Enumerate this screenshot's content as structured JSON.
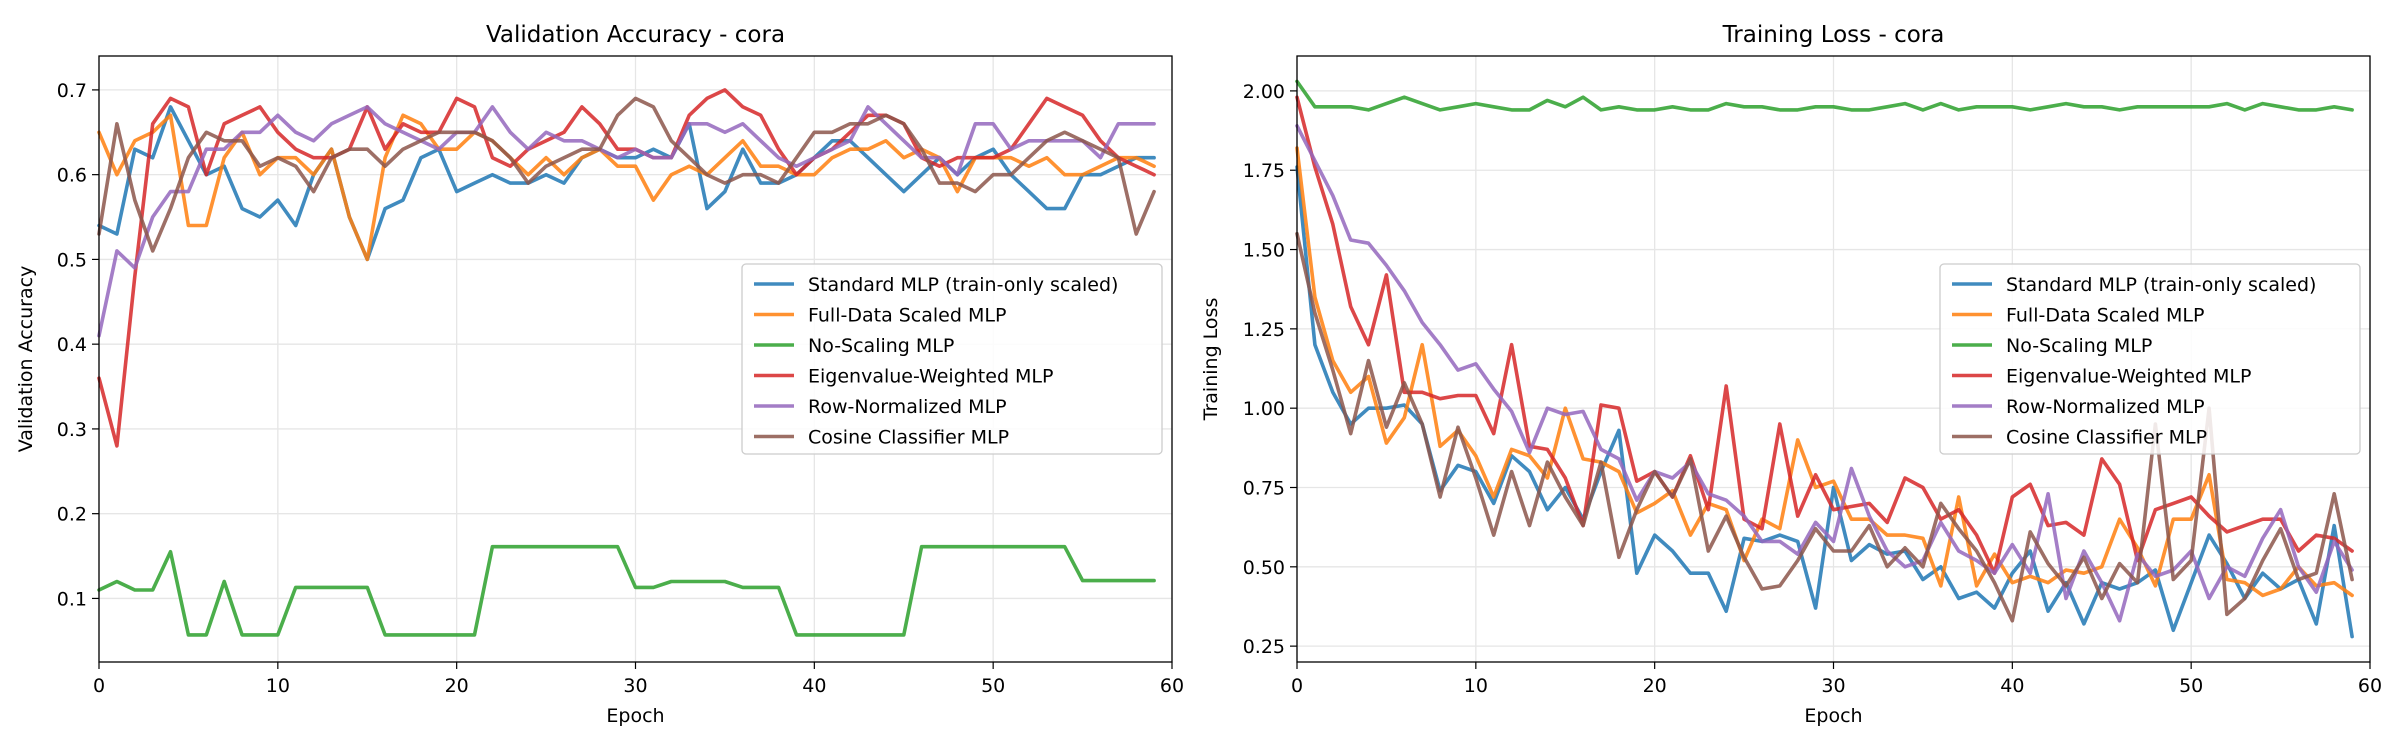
{
  "chart_data": [
    {
      "type": "line",
      "title": "Validation Accuracy - cora",
      "xlabel": "Epoch",
      "ylabel": "Validation Accuracy",
      "xlim": [
        0,
        60
      ],
      "ylim": [
        0.025,
        0.74
      ],
      "xticks": [
        0,
        10,
        20,
        30,
        40,
        50,
        60
      ],
      "yticks": [
        0.1,
        0.2,
        0.3,
        0.4,
        0.5,
        0.6,
        0.7
      ],
      "grid": true,
      "legend_position": "center-right",
      "x": [
        0,
        1,
        2,
        3,
        4,
        5,
        6,
        7,
        8,
        9,
        10,
        11,
        12,
        13,
        14,
        15,
        16,
        17,
        18,
        19,
        20,
        21,
        22,
        23,
        24,
        25,
        26,
        27,
        28,
        29,
        30,
        31,
        32,
        33,
        34,
        35,
        36,
        37,
        38,
        39,
        40,
        41,
        42,
        43,
        44,
        45,
        46,
        47,
        48,
        49,
        50,
        51,
        52,
        53,
        54,
        55,
        56,
        57,
        58,
        59
      ],
      "series": [
        {
          "name": "Standard MLP (train-only scaled)",
          "color": "#1f77b4",
          "values": [
            0.54,
            0.53,
            0.63,
            0.62,
            0.68,
            0.64,
            0.6,
            0.61,
            0.56,
            0.55,
            0.57,
            0.54,
            0.6,
            0.63,
            0.55,
            0.5,
            0.56,
            0.57,
            0.62,
            0.63,
            0.58,
            0.59,
            0.6,
            0.59,
            0.59,
            0.6,
            0.59,
            0.62,
            0.63,
            0.62,
            0.62,
            0.63,
            0.62,
            0.66,
            0.56,
            0.58,
            0.63,
            0.59,
            0.59,
            0.6,
            0.62,
            0.64,
            0.64,
            0.62,
            0.6,
            0.58,
            0.6,
            0.62,
            0.6,
            0.62,
            0.63,
            0.6,
            0.58,
            0.56,
            0.56,
            0.6,
            0.6,
            0.61,
            0.62,
            0.62
          ]
        },
        {
          "name": "Full-Data Scaled MLP",
          "color": "#ff7f0e",
          "values": [
            0.65,
            0.6,
            0.64,
            0.65,
            0.67,
            0.54,
            0.54,
            0.62,
            0.65,
            0.6,
            0.62,
            0.62,
            0.6,
            0.63,
            0.55,
            0.5,
            0.62,
            0.67,
            0.66,
            0.63,
            0.63,
            0.65,
            0.64,
            0.62,
            0.6,
            0.62,
            0.6,
            0.62,
            0.63,
            0.61,
            0.61,
            0.57,
            0.6,
            0.61,
            0.6,
            0.62,
            0.64,
            0.61,
            0.61,
            0.6,
            0.6,
            0.62,
            0.63,
            0.63,
            0.64,
            0.62,
            0.63,
            0.62,
            0.58,
            0.62,
            0.62,
            0.62,
            0.61,
            0.62,
            0.6,
            0.6,
            0.61,
            0.62,
            0.62,
            0.61
          ]
        },
        {
          "name": "No-Scaling MLP",
          "color": "#2ca02c",
          "values": [
            0.11,
            0.12,
            0.11,
            0.11,
            0.155,
            0.057,
            0.057,
            0.12,
            0.057,
            0.057,
            0.057,
            0.113,
            0.113,
            0.113,
            0.113,
            0.113,
            0.057,
            0.057,
            0.057,
            0.057,
            0.057,
            0.057,
            0.161,
            0.161,
            0.161,
            0.161,
            0.161,
            0.161,
            0.161,
            0.161,
            0.113,
            0.113,
            0.12,
            0.12,
            0.12,
            0.12,
            0.113,
            0.113,
            0.113,
            0.057,
            0.057,
            0.057,
            0.057,
            0.057,
            0.057,
            0.057,
            0.161,
            0.161,
            0.161,
            0.161,
            0.161,
            0.161,
            0.161,
            0.161,
            0.161,
            0.121,
            0.121,
            0.121,
            0.121,
            0.121
          ]
        },
        {
          "name": "Eigenvalue-Weighted MLP",
          "color": "#d62728",
          "values": [
            0.36,
            0.28,
            0.48,
            0.66,
            0.69,
            0.68,
            0.6,
            0.66,
            0.67,
            0.68,
            0.65,
            0.63,
            0.62,
            0.62,
            0.63,
            0.68,
            0.63,
            0.66,
            0.65,
            0.65,
            0.69,
            0.68,
            0.62,
            0.61,
            0.63,
            0.64,
            0.65,
            0.68,
            0.66,
            0.63,
            0.63,
            0.62,
            0.62,
            0.67,
            0.69,
            0.7,
            0.68,
            0.67,
            0.63,
            0.6,
            0.62,
            0.63,
            0.65,
            0.67,
            0.67,
            0.66,
            0.62,
            0.61,
            0.62,
            0.62,
            0.62,
            0.63,
            0.66,
            0.69,
            0.68,
            0.67,
            0.64,
            0.62,
            0.61,
            0.6
          ]
        },
        {
          "name": "Row-Normalized MLP",
          "color": "#9467bd",
          "values": [
            0.41,
            0.51,
            0.49,
            0.55,
            0.58,
            0.58,
            0.63,
            0.63,
            0.65,
            0.65,
            0.67,
            0.65,
            0.64,
            0.66,
            0.67,
            0.68,
            0.66,
            0.65,
            0.64,
            0.63,
            0.65,
            0.65,
            0.68,
            0.65,
            0.63,
            0.65,
            0.64,
            0.64,
            0.63,
            0.62,
            0.63,
            0.62,
            0.62,
            0.66,
            0.66,
            0.65,
            0.66,
            0.64,
            0.62,
            0.61,
            0.62,
            0.63,
            0.64,
            0.68,
            0.66,
            0.64,
            0.62,
            0.62,
            0.6,
            0.66,
            0.66,
            0.63,
            0.64,
            0.64,
            0.64,
            0.64,
            0.62,
            0.66,
            0.66,
            0.66
          ]
        },
        {
          "name": "Cosine Classifier MLP",
          "color": "#8c564b",
          "values": [
            0.53,
            0.66,
            0.57,
            0.51,
            0.56,
            0.62,
            0.65,
            0.64,
            0.64,
            0.61,
            0.62,
            0.61,
            0.58,
            0.62,
            0.63,
            0.63,
            0.61,
            0.63,
            0.64,
            0.65,
            0.65,
            0.65,
            0.64,
            0.62,
            0.59,
            0.61,
            0.62,
            0.63,
            0.63,
            0.67,
            0.69,
            0.68,
            0.64,
            0.62,
            0.6,
            0.59,
            0.6,
            0.6,
            0.59,
            0.62,
            0.65,
            0.65,
            0.66,
            0.66,
            0.67,
            0.66,
            0.63,
            0.59,
            0.59,
            0.58,
            0.6,
            0.6,
            0.62,
            0.64,
            0.65,
            0.64,
            0.63,
            0.62,
            0.53,
            0.58
          ]
        }
      ]
    },
    {
      "type": "line",
      "title": "Training Loss - cora",
      "xlabel": "Epoch",
      "ylabel": "Training Loss",
      "xlim": [
        0,
        60
      ],
      "ylim": [
        0.2,
        2.11
      ],
      "xticks": [
        0,
        10,
        20,
        30,
        40,
        50,
        60
      ],
      "yticks": [
        0.25,
        0.5,
        0.75,
        1.0,
        1.25,
        1.5,
        1.75,
        2.0
      ],
      "grid": true,
      "legend_position": "center-right",
      "x": [
        0,
        1,
        2,
        3,
        4,
        5,
        6,
        7,
        8,
        9,
        10,
        11,
        12,
        13,
        14,
        15,
        16,
        17,
        18,
        19,
        20,
        21,
        22,
        23,
        24,
        25,
        26,
        27,
        28,
        29,
        30,
        31,
        32,
        33,
        34,
        35,
        36,
        37,
        38,
        39,
        40,
        41,
        42,
        43,
        44,
        45,
        46,
        47,
        48,
        49,
        50,
        51,
        52,
        53,
        54,
        55,
        56,
        57,
        58,
        59
      ],
      "series": [
        {
          "name": "Standard MLP (train-only scaled)",
          "color": "#1f77b4",
          "values": [
            1.76,
            1.2,
            1.05,
            0.95,
            1.0,
            1.0,
            1.01,
            0.95,
            0.74,
            0.82,
            0.8,
            0.7,
            0.85,
            0.8,
            0.68,
            0.75,
            0.65,
            0.8,
            0.93,
            0.48,
            0.6,
            0.55,
            0.48,
            0.48,
            0.36,
            0.59,
            0.58,
            0.6,
            0.58,
            0.37,
            0.75,
            0.52,
            0.57,
            0.54,
            0.55,
            0.46,
            0.5,
            0.4,
            0.42,
            0.37,
            0.48,
            0.55,
            0.36,
            0.45,
            0.32,
            0.45,
            0.43,
            0.45,
            0.49,
            0.3,
            0.45,
            0.6,
            0.51,
            0.4,
            0.48,
            0.43,
            0.46,
            0.32,
            0.63,
            0.28
          ]
        },
        {
          "name": "Full-Data Scaled MLP",
          "color": "#ff7f0e",
          "values": [
            1.82,
            1.35,
            1.15,
            1.05,
            1.1,
            0.89,
            0.97,
            1.2,
            0.88,
            0.93,
            0.85,
            0.72,
            0.87,
            0.85,
            0.78,
            1.0,
            0.84,
            0.83,
            0.8,
            0.67,
            0.7,
            0.74,
            0.6,
            0.7,
            0.68,
            0.52,
            0.65,
            0.62,
            0.9,
            0.75,
            0.77,
            0.65,
            0.65,
            0.6,
            0.6,
            0.59,
            0.44,
            0.72,
            0.44,
            0.54,
            0.45,
            0.47,
            0.45,
            0.49,
            0.48,
            0.5,
            0.65,
            0.56,
            0.44,
            0.65,
            0.65,
            0.79,
            0.46,
            0.45,
            0.41,
            0.43,
            0.5,
            0.44,
            0.45,
            0.41
          ]
        },
        {
          "name": "No-Scaling MLP",
          "color": "#2ca02c",
          "values": [
            2.03,
            1.95,
            1.95,
            1.95,
            1.94,
            1.96,
            1.98,
            1.96,
            1.94,
            1.95,
            1.96,
            1.95,
            1.94,
            1.94,
            1.97,
            1.95,
            1.98,
            1.94,
            1.95,
            1.94,
            1.94,
            1.95,
            1.94,
            1.94,
            1.96,
            1.95,
            1.95,
            1.94,
            1.94,
            1.95,
            1.95,
            1.94,
            1.94,
            1.95,
            1.96,
            1.94,
            1.96,
            1.94,
            1.95,
            1.95,
            1.95,
            1.94,
            1.95,
            1.96,
            1.95,
            1.95,
            1.94,
            1.95,
            1.95,
            1.95,
            1.95,
            1.95,
            1.96,
            1.94,
            1.96,
            1.95,
            1.94,
            1.94,
            1.95,
            1.94
          ]
        },
        {
          "name": "Eigenvalue-Weighted MLP",
          "color": "#d62728",
          "values": [
            1.98,
            1.76,
            1.58,
            1.32,
            1.2,
            1.42,
            1.05,
            1.05,
            1.03,
            1.04,
            1.04,
            0.92,
            1.2,
            0.88,
            0.87,
            0.78,
            0.63,
            1.01,
            1.0,
            0.77,
            0.8,
            0.72,
            0.85,
            0.68,
            1.07,
            0.65,
            0.62,
            0.95,
            0.66,
            0.79,
            0.68,
            0.69,
            0.7,
            0.64,
            0.78,
            0.75,
            0.65,
            0.68,
            0.6,
            0.48,
            0.72,
            0.76,
            0.63,
            0.64,
            0.6,
            0.84,
            0.76,
            0.52,
            0.68,
            0.7,
            0.72,
            0.66,
            0.61,
            0.63,
            0.65,
            0.65,
            0.55,
            0.6,
            0.59,
            0.55
          ]
        },
        {
          "name": "Row-Normalized MLP",
          "color": "#9467bd",
          "values": [
            1.89,
            1.78,
            1.67,
            1.53,
            1.52,
            1.45,
            1.37,
            1.27,
            1.2,
            1.12,
            1.14,
            1.06,
            0.99,
            0.86,
            1.0,
            0.98,
            0.99,
            0.87,
            0.84,
            0.71,
            0.8,
            0.78,
            0.83,
            0.73,
            0.71,
            0.66,
            0.58,
            0.58,
            0.54,
            0.64,
            0.58,
            0.81,
            0.66,
            0.55,
            0.5,
            0.52,
            0.64,
            0.55,
            0.52,
            0.48,
            0.57,
            0.48,
            0.73,
            0.4,
            0.55,
            0.45,
            0.33,
            0.54,
            0.47,
            0.49,
            0.55,
            0.4,
            0.5,
            0.47,
            0.59,
            0.68,
            0.5,
            0.42,
            0.58,
            0.49
          ]
        },
        {
          "name": "Cosine Classifier MLP",
          "color": "#8c564b",
          "values": [
            1.55,
            1.3,
            1.12,
            0.92,
            1.15,
            0.94,
            1.08,
            0.95,
            0.72,
            0.94,
            0.78,
            0.6,
            0.8,
            0.63,
            0.83,
            0.72,
            0.63,
            0.83,
            0.53,
            0.68,
            0.8,
            0.72,
            0.84,
            0.55,
            0.66,
            0.53,
            0.43,
            0.44,
            0.52,
            0.62,
            0.55,
            0.55,
            0.63,
            0.5,
            0.56,
            0.5,
            0.7,
            0.62,
            0.55,
            0.45,
            0.33,
            0.61,
            0.51,
            0.44,
            0.53,
            0.4,
            0.51,
            0.45,
            0.95,
            0.46,
            0.52,
            1.0,
            0.35,
            0.4,
            0.52,
            0.62,
            0.46,
            0.48,
            0.73,
            0.46
          ]
        }
      ]
    }
  ]
}
